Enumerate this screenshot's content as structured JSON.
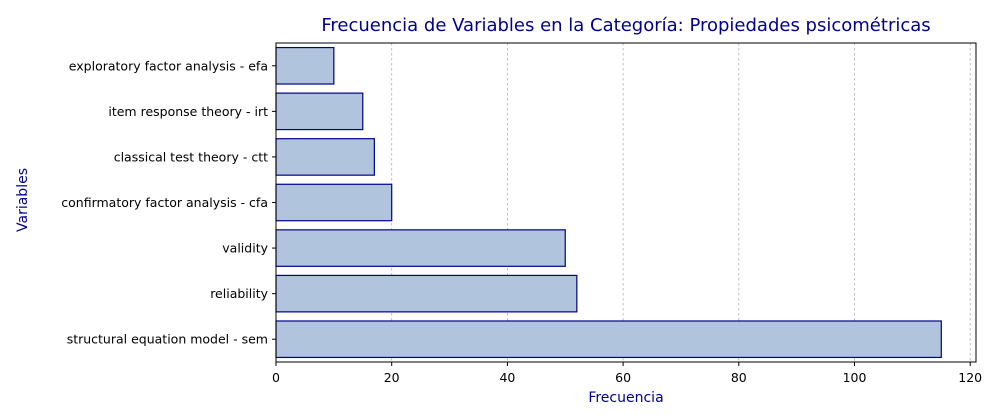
{
  "chart_data": {
    "type": "bar",
    "orientation": "horizontal",
    "title": "Frecuencia de Variables en la Categoría: Propiedades psicométricas",
    "xlabel": "Frecuencia",
    "ylabel": "Variables",
    "xlim": [
      0,
      121
    ],
    "xticks": [
      0,
      20,
      40,
      60,
      80,
      100,
      120
    ],
    "grid": "x-dashed",
    "categories": [
      "structural equation model - sem",
      "reliability",
      "validity",
      "confirmatory factor analysis - cfa",
      "classical test theory - ctt",
      "item response theory - irt",
      "exploratory factor analysis - efa"
    ],
    "values": [
      115,
      52,
      50,
      20,
      17,
      15,
      10
    ],
    "colors": {
      "bar_fill": "#b0c4de",
      "bar_edge": "#00008b",
      "text_accent": "#00008b"
    }
  }
}
